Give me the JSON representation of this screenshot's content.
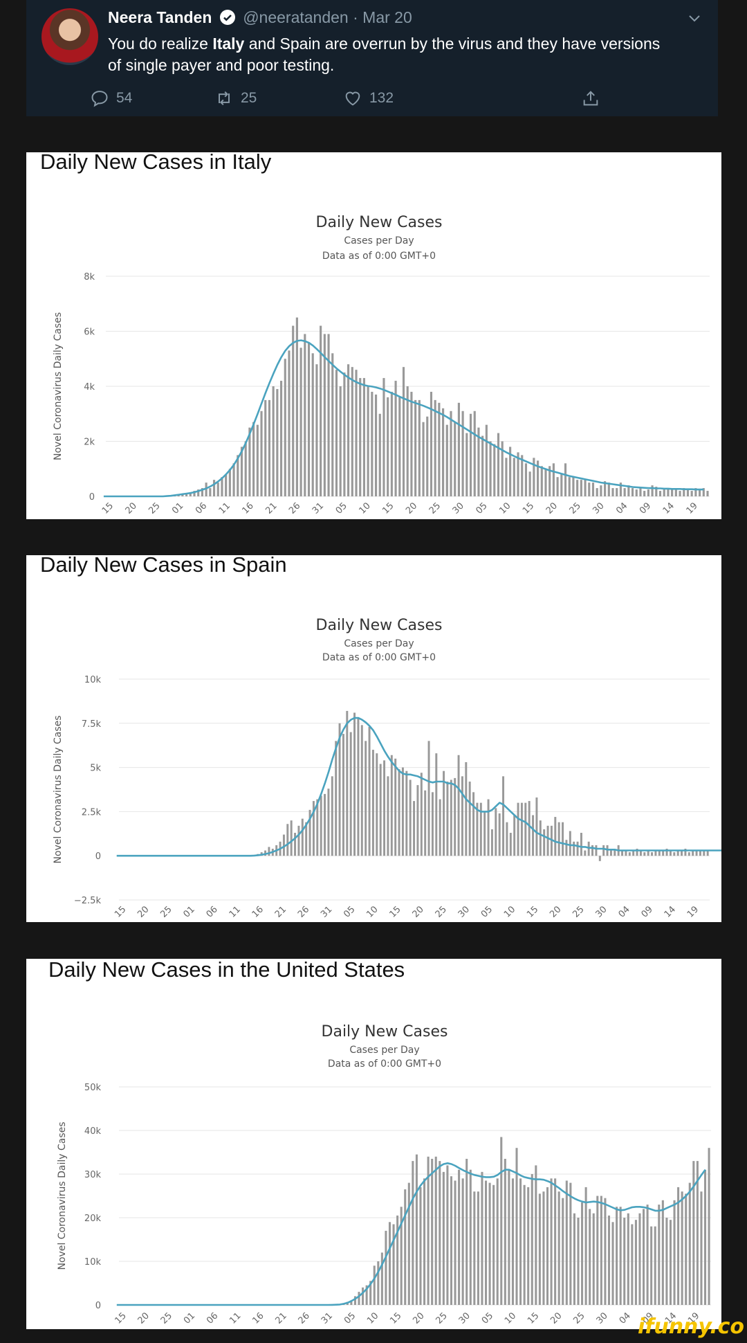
{
  "tweet": {
    "name": "Neera Tanden",
    "handle": "@neeratanden",
    "date": "Mar 20",
    "text_html": "You do realize <b>Italy</b> and Spain are overrun by the virus and they have versions of single payer and poor testing.",
    "replies": "54",
    "retweets": "25",
    "likes": "132",
    "icons": [
      "verified-badge-icon",
      "chevron-down-icon",
      "reply-icon",
      "retweet-icon",
      "like-icon",
      "share-icon"
    ]
  },
  "panels": [
    {
      "title": "Daily New Cases in Italy"
    },
    {
      "title": "Daily New Cases in Spain"
    },
    {
      "title": "Daily New Cases in the United States"
    }
  ],
  "colors": {
    "bars": "#999999",
    "line": "#4aa3bf",
    "tweet_bg": "#15202b",
    "watermark": "#f5c400"
  },
  "watermark": "ifunny.co",
  "chart_data": [
    {
      "type": "bar",
      "title": "Daily New Cases",
      "subtitle": "Cases per Day",
      "subtitle2": "Data as of 0:00 GMT+0",
      "ylabel": "Novel Coronavirus Daily Cases",
      "yticks": [
        "0",
        "2k",
        "4k",
        "6k",
        "8k"
      ],
      "ylim": [
        0,
        8000
      ],
      "xticks": [
        "15",
        "20",
        "25",
        "01",
        "06",
        "11",
        "16",
        "21",
        "26",
        "31",
        "05",
        "10",
        "15",
        "20",
        "25",
        "30",
        "05",
        "10",
        "15",
        "20",
        "25",
        "30",
        "04",
        "09",
        "14",
        "19"
      ],
      "series": [
        {
          "values": [
            0,
            0,
            0,
            0,
            0,
            0,
            0,
            0,
            0,
            0,
            0,
            0,
            0,
            0,
            0,
            0,
            0,
            20,
            40,
            60,
            80,
            100,
            150,
            200,
            250,
            300,
            500,
            300,
            600,
            500,
            700,
            800,
            1000,
            1200,
            1500,
            1800,
            2000,
            2500,
            2700,
            2600,
            3100,
            3500,
            3500,
            4000,
            3900,
            4200,
            5000,
            5300,
            6200,
            6500,
            5400,
            5900,
            5600,
            5200,
            4800,
            6200,
            5900,
            5900,
            5200,
            4600,
            4000,
            4500,
            4800,
            4700,
            4600,
            4300,
            4300,
            4000,
            3800,
            3700,
            3000,
            4300,
            3600,
            3800,
            4200,
            3600,
            4700,
            4000,
            3800,
            3500,
            3500,
            2700,
            2900,
            3800,
            3500,
            3400,
            3200,
            2600,
            3100,
            2700,
            3400,
            3100,
            2300,
            3000,
            3100,
            2500,
            2200,
            2600,
            2000,
            1900,
            2300,
            2000,
            1400,
            1800,
            1400,
            1600,
            1500,
            1200,
            900,
            1400,
            1300,
            1100,
            1000,
            1100,
            1200,
            700,
            800,
            1200,
            700,
            700,
            600,
            600,
            600,
            500,
            500,
            300,
            400,
            550,
            500,
            300,
            300,
            500,
            300,
            400,
            300,
            250,
            300,
            200,
            250,
            400,
            350,
            200,
            250,
            300,
            250,
            300,
            200,
            300,
            250,
            200,
            300,
            250,
            300,
            200
          ]
        },
        {
          "values": [
            0,
            0,
            0,
            0,
            0,
            0,
            0,
            0,
            0,
            0,
            0,
            0,
            0,
            0,
            0,
            0,
            10,
            20,
            40,
            60,
            80,
            100,
            120,
            150,
            190,
            240,
            290,
            360,
            440,
            540,
            660,
            800,
            960,
            1150,
            1380,
            1640,
            1940,
            2270,
            2630,
            3000,
            3380,
            3760,
            4120,
            4460,
            4780,
            5060,
            5290,
            5460,
            5580,
            5650,
            5670,
            5640,
            5580,
            5480,
            5350,
            5210,
            5060,
            4920,
            4780,
            4650,
            4530,
            4420,
            4320,
            4230,
            4150,
            4090,
            4040,
            4010,
            3990,
            3960,
            3920,
            3870,
            3810,
            3750,
            3690,
            3620,
            3560,
            3500,
            3440,
            3390,
            3340,
            3290,
            3230,
            3170,
            3100,
            3030,
            2960,
            2880,
            2790,
            2700,
            2610,
            2520,
            2430,
            2340,
            2250,
            2160,
            2080,
            2000,
            1920,
            1840,
            1760,
            1680,
            1600,
            1530,
            1460,
            1390,
            1330,
            1270,
            1210,
            1150,
            1090,
            1040,
            990,
            940,
            900,
            860,
            820,
            780,
            740,
            710,
            680,
            650,
            620,
            590,
            560,
            530,
            500,
            480,
            460,
            440,
            420,
            400,
            380,
            360,
            340,
            330,
            320,
            310,
            300,
            300,
            290,
            290,
            280,
            280,
            270,
            270,
            270,
            260,
            260,
            260,
            250,
            250,
            250
          ]
        }
      ]
    },
    {
      "type": "bar",
      "title": "Daily New Cases",
      "subtitle": "Cases per Day",
      "subtitle2": "Data as of 0:00 GMT+0",
      "ylabel": "Novel Coronavirus Daily Cases",
      "yticks": [
        "−2.5k",
        "0",
        "2.5k",
        "5k",
        "7.5k",
        "10k"
      ],
      "ylim": [
        -2500,
        10000
      ],
      "xticks": [
        "15",
        "20",
        "25",
        "01",
        "06",
        "11",
        "16",
        "21",
        "26",
        "31",
        "05",
        "10",
        "15",
        "20",
        "25",
        "30",
        "05",
        "10",
        "15",
        "20",
        "25",
        "30",
        "04",
        "09",
        "14",
        "19"
      ],
      "series": [
        {
          "values": [
            0,
            0,
            0,
            0,
            0,
            0,
            0,
            0,
            0,
            0,
            0,
            0,
            0,
            0,
            0,
            0,
            0,
            0,
            0,
            0,
            0,
            0,
            0,
            0,
            0,
            0,
            0,
            0,
            0,
            0,
            0,
            0,
            0,
            0,
            0,
            0,
            0,
            50,
            100,
            200,
            300,
            500,
            400,
            600,
            800,
            1200,
            1800,
            2000,
            1300,
            1700,
            2100,
            1900,
            2600,
            3100,
            3200,
            3400,
            3500,
            3800,
            4500,
            6500,
            7500,
            6900,
            8200,
            7000,
            8100,
            7800,
            7400,
            6500,
            7300,
            6000,
            5800,
            5200,
            5400,
            4500,
            5700,
            5500,
            4900,
            5000,
            4800,
            4300,
            3100,
            4000,
            4700,
            3700,
            6500,
            3600,
            5800,
            3200,
            4800,
            4200,
            4300,
            4400,
            5700,
            4500,
            5300,
            4200,
            3600,
            3000,
            3000,
            2500,
            3200,
            1500,
            2700,
            2400,
            4500,
            1900,
            1300,
            2300,
            3000,
            3000,
            3000,
            3100,
            2300,
            3300,
            2000,
            1500,
            1700,
            1700,
            2200,
            1900,
            1900,
            900,
            1400,
            800,
            800,
            1300,
            300,
            800,
            600,
            600,
            -300,
            600,
            600,
            300,
            300,
            600,
            300,
            300,
            200,
            300,
            400,
            300,
            200,
            300,
            200,
            300,
            300,
            300,
            400,
            300,
            200,
            300,
            300,
            400,
            200,
            300,
            300,
            300,
            300,
            300
          ]
        },
        {
          "values": [
            0,
            0,
            0,
            0,
            0,
            0,
            0,
            0,
            0,
            0,
            0,
            0,
            0,
            0,
            0,
            0,
            0,
            0,
            0,
            0,
            0,
            0,
            0,
            0,
            0,
            0,
            0,
            0,
            0,
            0,
            0,
            0,
            0,
            0,
            0,
            0,
            0,
            10,
            30,
            60,
            100,
            150,
            220,
            300,
            400,
            520,
            660,
            820,
            1000,
            1200,
            1450,
            1750,
            2100,
            2500,
            2950,
            3500,
            4100,
            4750,
            5450,
            6100,
            6700,
            7150,
            7500,
            7700,
            7800,
            7800,
            7700,
            7550,
            7350,
            7100,
            6750,
            6350,
            5950,
            5600,
            5300,
            5050,
            4800,
            4650,
            4600,
            4600,
            4550,
            4500,
            4400,
            4300,
            4200,
            4150,
            4200,
            4200,
            4200,
            4100,
            4100,
            4000,
            3800,
            3500,
            3200,
            3000,
            2800,
            2600,
            2500,
            2500,
            2500,
            2600,
            2800,
            3000,
            2900,
            2700,
            2500,
            2300,
            2100,
            2000,
            1900,
            1700,
            1500,
            1300,
            1200,
            1100,
            1000,
            900,
            800,
            750,
            700,
            650,
            600,
            600,
            550,
            500,
            500,
            450,
            450,
            400,
            400,
            400,
            350,
            350,
            350,
            300,
            300,
            300,
            300,
            300,
            300,
            300,
            300,
            300,
            300,
            300,
            300,
            300,
            300,
            300,
            300,
            300,
            300,
            300,
            300,
            300,
            300,
            300,
            300,
            300,
            300,
            300,
            300,
            300,
            300,
            300
          ]
        }
      ]
    },
    {
      "type": "bar",
      "title": "Daily New Cases",
      "subtitle": "Cases per Day",
      "subtitle2": "Data as of 0:00 GMT+0",
      "ylabel": "Novel Coronavirus Daily Cases",
      "yticks": [
        "0",
        "10k",
        "20k",
        "30k",
        "40k",
        "50k"
      ],
      "ylim": [
        0,
        50000
      ],
      "xticks": [
        "15",
        "20",
        "25",
        "01",
        "06",
        "11",
        "16",
        "21",
        "26",
        "31",
        "05",
        "10",
        "15",
        "20",
        "25",
        "30",
        "05",
        "10",
        "15",
        "20",
        "25",
        "30",
        "04",
        "09",
        "14",
        "19"
      ],
      "series": [
        {
          "values": [
            0,
            0,
            0,
            0,
            0,
            0,
            0,
            0,
            0,
            0,
            0,
            0,
            0,
            0,
            0,
            0,
            0,
            0,
            0,
            0,
            0,
            0,
            0,
            0,
            0,
            0,
            0,
            0,
            0,
            0,
            0,
            0,
            0,
            0,
            0,
            0,
            0,
            0,
            0,
            0,
            0,
            0,
            0,
            0,
            0,
            0,
            0,
            0,
            0,
            0,
            0,
            0,
            0,
            0,
            0,
            0,
            50,
            100,
            200,
            400,
            700,
            1000,
            2000,
            3000,
            4000,
            4500,
            5500,
            9000,
            10000,
            12000,
            17000,
            19000,
            18500,
            20500,
            22500,
            26500,
            28000,
            33000,
            34500,
            27000,
            29000,
            34000,
            33500,
            34000,
            33000,
            30500,
            32000,
            29500,
            28500,
            31000,
            29000,
            33500,
            31000,
            26000,
            26000,
            30500,
            28500,
            28000,
            27500,
            29000,
            38500,
            33500,
            31000,
            29000,
            36000,
            29000,
            27500,
            27000,
            30000,
            32000,
            25500,
            26000,
            27000,
            29000,
            29000,
            26000,
            24500,
            28500,
            28000,
            21000,
            20000,
            23500,
            27000,
            22000,
            21000,
            25000,
            25000,
            24500,
            20500,
            19000,
            22500,
            22500,
            20000,
            21000,
            18500,
            19500,
            21000,
            22000,
            23000,
            18000,
            18000,
            23000,
            24000,
            20000,
            19500,
            24000,
            27000,
            26000,
            25500,
            28000,
            33000,
            33000,
            26000,
            31000,
            36000
          ]
        },
        {
          "values": [
            0,
            0,
            0,
            0,
            0,
            0,
            0,
            0,
            0,
            0,
            0,
            0,
            0,
            0,
            0,
            0,
            0,
            0,
            0,
            0,
            0,
            0,
            0,
            0,
            0,
            0,
            0,
            0,
            0,
            0,
            0,
            0,
            0,
            0,
            0,
            0,
            0,
            0,
            0,
            0,
            0,
            0,
            0,
            0,
            0,
            0,
            0,
            0,
            0,
            0,
            0,
            0,
            0,
            0,
            0,
            0,
            20,
            50,
            100,
            250,
            500,
            900,
            1400,
            2000,
            2800,
            3700,
            4800,
            6100,
            7600,
            9300,
            11100,
            13000,
            14900,
            16800,
            18700,
            20600,
            22500,
            24400,
            26000,
            27400,
            28500,
            29400,
            30200,
            31000,
            31800,
            32300,
            32500,
            32300,
            31900,
            31400,
            30900,
            30500,
            30100,
            29800,
            29600,
            29400,
            29300,
            29300,
            29400,
            29800,
            30500,
            31000,
            31000,
            30600,
            30200,
            29700,
            29300,
            29100,
            28900,
            28800,
            28800,
            28700,
            28400,
            28000,
            27400,
            26800,
            26100,
            25500,
            24900,
            24400,
            24000,
            23700,
            23500,
            23600,
            23700,
            23600,
            23400,
            23100,
            22700,
            22300,
            21900,
            21700,
            21800,
            22100,
            22400,
            22500,
            22500,
            22400,
            22200,
            21900,
            21600,
            21600,
            21800,
            22200,
            22600,
            23000,
            23500,
            24200,
            25000,
            26000,
            27200,
            28500,
            29800,
            31000
          ]
        }
      ]
    }
  ]
}
